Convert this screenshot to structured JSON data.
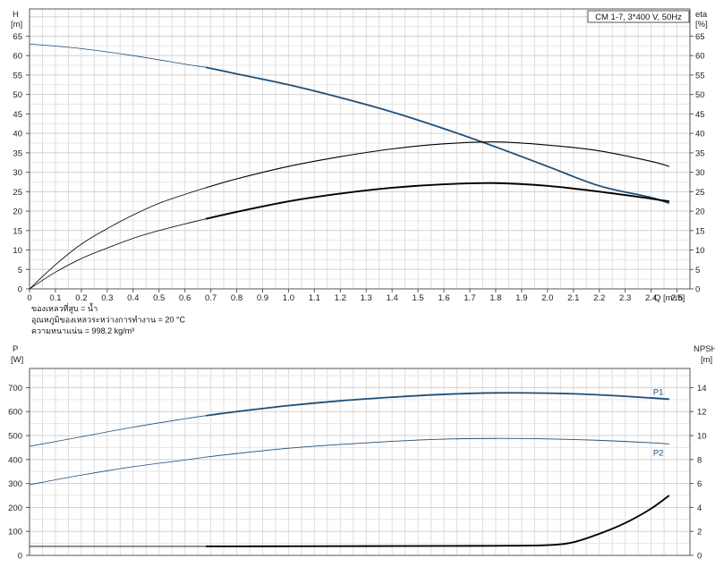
{
  "chart_data": [
    {
      "type": "line",
      "title": "CM 1-7, 3*400 V, 50Hz",
      "xlabel": "Q [m³/h]",
      "ylabel_left": [
        "H",
        "[m]"
      ],
      "ylabel_right": [
        "eta",
        "[%]"
      ],
      "xlim": [
        0,
        2.55
      ],
      "ylim": [
        0,
        72
      ],
      "x_ticks": [
        "0",
        "0.1",
        "0.2",
        "0.3",
        "0.4",
        "0.5",
        "0.6",
        "0.7",
        "0.8",
        "0.9",
        "1.0",
        "1.1",
        "1.2",
        "1.3",
        "1.4",
        "1.5",
        "1.6",
        "1.7",
        "1.8",
        "1.9",
        "2.0",
        "2.1",
        "2.2",
        "2.3",
        "2.4",
        "2.5"
      ],
      "y_ticks": [
        "0",
        "5",
        "10",
        "15",
        "20",
        "25",
        "30",
        "35",
        "40",
        "45",
        "50",
        "55",
        "60",
        "65"
      ],
      "grid": true,
      "notes": [
        "ของเหลวที่สูบ = น้ำ",
        "อุณหภูมิของเหลวระหว่างการทำงาน = 20 °C",
        "ความหนาแน่น = 998.2 kg/m³"
      ],
      "series": [
        {
          "role": "head",
          "color": "#1f4e79",
          "x": [
            0,
            0.2,
            0.4,
            0.6,
            0.68,
            0.8,
            1.0,
            1.2,
            1.4,
            1.6,
            1.8,
            2.0,
            2.2,
            2.4,
            2.47
          ],
          "y": [
            63,
            61.8,
            60.0,
            57.8,
            57.0,
            55.3,
            52.5,
            49.2,
            45.5,
            41.2,
            36.5,
            31.5,
            26.5,
            23.5,
            22.0
          ]
        },
        {
          "role": "efficiency-outer",
          "color": "#000000",
          "x": [
            0,
            0.1,
            0.2,
            0.3,
            0.4,
            0.5,
            0.6,
            0.68,
            0.8,
            1.0,
            1.2,
            1.4,
            1.6,
            1.8,
            2.0,
            2.2,
            2.4,
            2.47
          ],
          "y": [
            0,
            6.2,
            11.5,
            15.5,
            19.0,
            22.0,
            24.3,
            26.0,
            28.3,
            31.5,
            34.0,
            36.0,
            37.3,
            37.8,
            37.0,
            35.5,
            32.8,
            31.5
          ]
        },
        {
          "role": "efficiency-inner",
          "color": "#000000",
          "x": [
            0,
            0.1,
            0.2,
            0.3,
            0.4,
            0.5,
            0.6,
            0.68,
            0.8,
            1.0,
            1.2,
            1.4,
            1.6,
            1.8,
            2.0,
            2.2,
            2.4,
            2.47
          ],
          "y": [
            0,
            4.3,
            7.8,
            10.5,
            13.0,
            15.0,
            16.7,
            18.0,
            19.8,
            22.5,
            24.5,
            26.0,
            26.9,
            27.2,
            26.5,
            25.0,
            23.2,
            22.5
          ]
        }
      ]
    },
    {
      "type": "line",
      "xlim": [
        0,
        2.55
      ],
      "ylabel_left": [
        "P",
        "[W]"
      ],
      "ylabel_right": [
        "NPSH",
        "[m]"
      ],
      "ylim_left": [
        0,
        780
      ],
      "ylim_right": [
        0,
        15.6
      ],
      "y_ticks_left": [
        "0",
        "100",
        "200",
        "300",
        "400",
        "500",
        "600",
        "700"
      ],
      "y_ticks_right": [
        "0",
        "2",
        "4",
        "6",
        "8",
        "10",
        "12",
        "14"
      ],
      "grid": true,
      "series": [
        {
          "name": "P1",
          "color": "#1f4e79",
          "x": [
            0,
            0.2,
            0.4,
            0.6,
            0.68,
            0.8,
            1.0,
            1.2,
            1.4,
            1.6,
            1.8,
            2.0,
            2.2,
            2.4,
            2.47
          ],
          "y": [
            455,
            495,
            535,
            570,
            583,
            600,
            625,
            645,
            660,
            672,
            678,
            677,
            670,
            657,
            652
          ]
        },
        {
          "name": "P2",
          "color": "#1f4e79",
          "x": [
            0,
            0.2,
            0.4,
            0.6,
            0.68,
            0.8,
            1.0,
            1.2,
            1.4,
            1.6,
            1.8,
            2.0,
            2.2,
            2.4,
            2.47
          ],
          "y": [
            295,
            335,
            370,
            398,
            410,
            425,
            447,
            463,
            476,
            485,
            488,
            486,
            480,
            470,
            465
          ]
        },
        {
          "role": "npsh",
          "axis": "right",
          "color": "#000000",
          "x": [
            0,
            0.68,
            0.8,
            1.0,
            1.2,
            1.4,
            1.6,
            1.8,
            2.0,
            2.1,
            2.2,
            2.3,
            2.4,
            2.47
          ],
          "y": [
            0.75,
            0.75,
            0.75,
            0.76,
            0.77,
            0.78,
            0.79,
            0.8,
            0.85,
            1.1,
            1.8,
            2.7,
            3.9,
            5.0
          ]
        }
      ]
    }
  ]
}
